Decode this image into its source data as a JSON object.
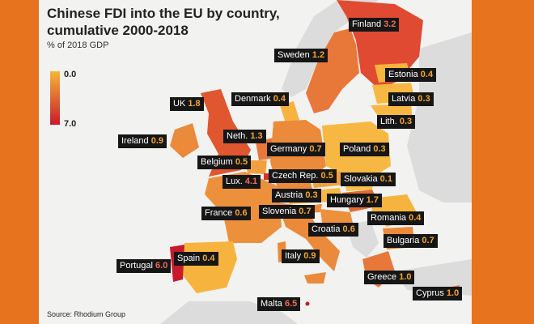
{
  "title": "Chinese FDI into the EU by country, cumulative 2000-2018",
  "subtitle": "% of 2018 GDP",
  "legend": {
    "min": "0.0",
    "max": "7.0",
    "colors": [
      "#f6b53b",
      "#c91a2c"
    ]
  },
  "source": "Source: Rhodium Group",
  "colors": {
    "background": "#e8731f",
    "non_eu": "#dcdcdc",
    "sea": "#f2f2f0",
    "value_low": "#f4a62d",
    "value_high": "#ef6a5a"
  },
  "countries": [
    {
      "name": "Finland",
      "value": "3.2"
    },
    {
      "name": "Sweden",
      "value": "1.2"
    },
    {
      "name": "Estonia",
      "value": "0.4"
    },
    {
      "name": "Latvia",
      "value": "0.3"
    },
    {
      "name": "UK",
      "value": "1.8"
    },
    {
      "name": "Denmark",
      "value": "0.4"
    },
    {
      "name": "Lith.",
      "value": "0.3"
    },
    {
      "name": "Ireland",
      "value": "0.9"
    },
    {
      "name": "Neth.",
      "value": "1.3"
    },
    {
      "name": "Germany",
      "value": "0.7"
    },
    {
      "name": "Poland",
      "value": "0.3"
    },
    {
      "name": "Belgium",
      "value": "0.5"
    },
    {
      "name": "Lux.",
      "value": "4.1"
    },
    {
      "name": "Czech Rep.",
      "value": "0.5"
    },
    {
      "name": "Slovakia",
      "value": "0.1"
    },
    {
      "name": "Austria",
      "value": "0.3"
    },
    {
      "name": "Hungary",
      "value": "1.7"
    },
    {
      "name": "France",
      "value": "0.6"
    },
    {
      "name": "Slovenia",
      "value": "0.7"
    },
    {
      "name": "Romania",
      "value": "0.4"
    },
    {
      "name": "Croatia",
      "value": "0.6"
    },
    {
      "name": "Bulgaria",
      "value": "0.7"
    },
    {
      "name": "Portugal",
      "value": "6.0"
    },
    {
      "name": "Spain",
      "value": "0.4"
    },
    {
      "name": "Italy",
      "value": "0.9"
    },
    {
      "name": "Greece",
      "value": "1.0"
    },
    {
      "name": "Cyprus",
      "value": "1.0"
    },
    {
      "name": "Malta",
      "value": "6.5"
    }
  ]
}
